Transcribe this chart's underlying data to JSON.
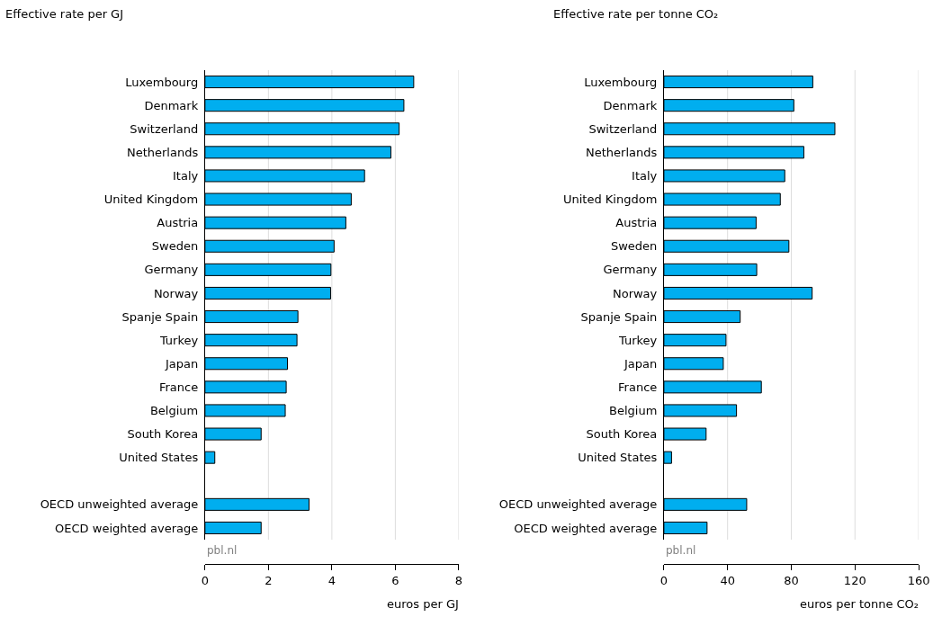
{
  "chart_data": [
    {
      "type": "bar",
      "orientation": "horizontal",
      "title": "Effective rate per GJ",
      "xlabel": "euros per GJ",
      "categories": [
        "Luxembourg",
        "Denmark",
        "Switzerland",
        "Netherlands",
        "Italy",
        "United Kingdom",
        "Austria",
        "Sweden",
        "Germany",
        "Norway",
        "Spanje Spain",
        "Turkey",
        "Japan",
        "France",
        "Belgium",
        "South Korea",
        "United States",
        null,
        "OECD unweighted average",
        "OECD weighted average"
      ],
      "values": [
        6.58,
        6.27,
        6.12,
        5.86,
        5.03,
        4.61,
        4.44,
        4.07,
        3.97,
        3.96,
        2.93,
        2.9,
        2.6,
        2.56,
        2.53,
        1.77,
        0.31,
        null,
        3.28,
        1.77
      ],
      "color": "#00aeef",
      "xlim": [
        0,
        8
      ],
      "xticks": [
        0,
        2,
        4,
        6,
        8
      ],
      "grid": "x",
      "annotations": [
        "pbl.nl"
      ]
    },
    {
      "type": "bar",
      "orientation": "horizontal",
      "title": "Effective rate per tonne CO₂",
      "xlabel": "euros per tonne CO₂",
      "categories": [
        "Luxembourg",
        "Denmark",
        "Switzerland",
        "Netherlands",
        "Italy",
        "United Kingdom",
        "Austria",
        "Sweden",
        "Germany",
        "Norway",
        "Spanje Spain",
        "Turkey",
        "Japan",
        "France",
        "Belgium",
        "South Korea",
        "United States",
        null,
        "OECD unweighted average",
        "OECD weighted average"
      ],
      "values": [
        93.5,
        81.6,
        107.4,
        87.9,
        75.9,
        73.1,
        57.9,
        78.5,
        58.3,
        93.1,
        47.9,
        39.0,
        37.3,
        61.2,
        45.6,
        26.5,
        4.8,
        null,
        52.0,
        27.1
      ],
      "color": "#00aeef",
      "xlim": [
        0,
        160
      ],
      "xticks": [
        0,
        40,
        80,
        120,
        160
      ],
      "grid": "x",
      "annotations": [
        "pbl.nl"
      ]
    }
  ]
}
